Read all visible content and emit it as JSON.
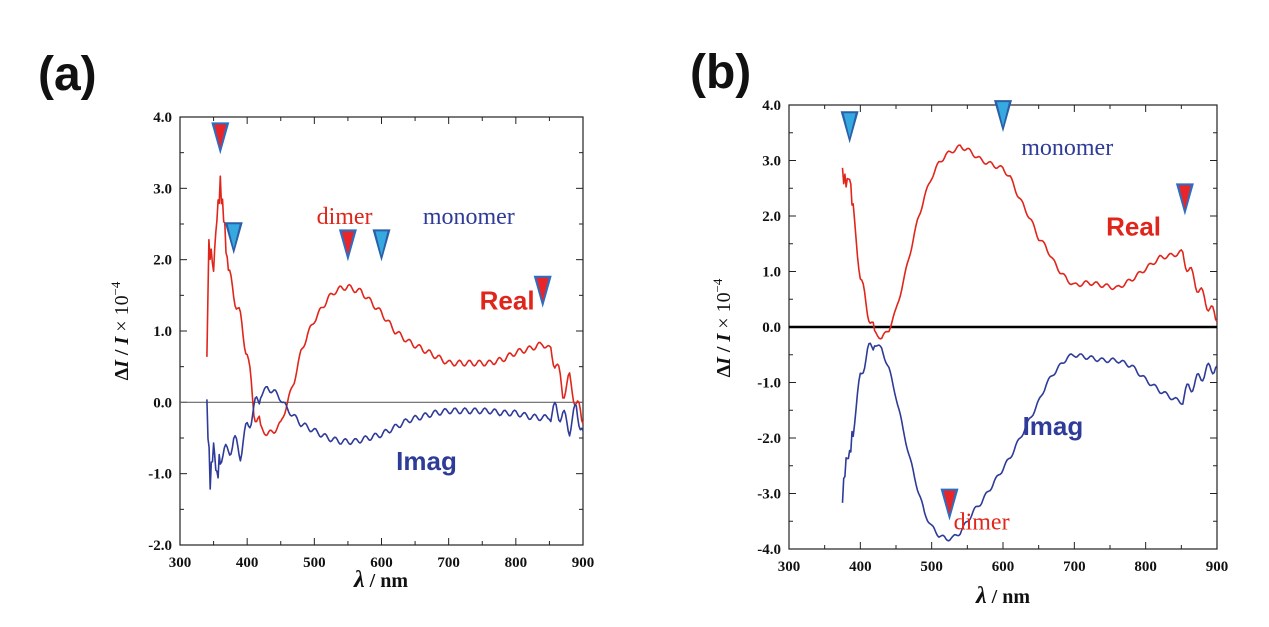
{
  "chart_data": [
    {
      "type": "line",
      "panel_label": "(a)",
      "x_range": [
        300,
        900
      ],
      "y_range": [
        -2.0,
        4.0
      ],
      "x_ticks": [
        "300",
        "400",
        "500",
        "600",
        "700",
        "800",
        "900"
      ],
      "y_ticks": [
        "4.0",
        "3.0",
        "2.0",
        "1.0",
        "0.0",
        "-1.0",
        "-2.0"
      ],
      "xlabel": {
        "symbol": "λ",
        "sep": " / ",
        "unit": "nm"
      },
      "ylabel": {
        "delta": "Δ",
        "numer": "I",
        "slash": " / ",
        "denom": "I",
        "times": " × 10",
        "exp": "−4"
      },
      "zero_line": {
        "y": 0,
        "color": "#666666"
      },
      "series": [
        {
          "name": "Real",
          "color": "#e0261b",
          "x": [
            340,
            343,
            350,
            355,
            360,
            365,
            372,
            380,
            390,
            400,
            410,
            420,
            430,
            440,
            450,
            460,
            470,
            480,
            490,
            500,
            510,
            520,
            530,
            540,
            550,
            560,
            570,
            580,
            590,
            600,
            620,
            640,
            660,
            680,
            700,
            720,
            740,
            760,
            780,
            800,
            820,
            840,
            850,
            860,
            870,
            880,
            890,
            900
          ],
          "y": [
            0.7,
            2.2,
            1.9,
            2.6,
            3.05,
            2.6,
            1.8,
            1.55,
            1.15,
            0.7,
            -0.1,
            -0.35,
            -0.45,
            -0.4,
            -0.3,
            0.0,
            0.3,
            0.7,
            0.95,
            1.15,
            1.3,
            1.45,
            1.55,
            1.6,
            1.62,
            1.58,
            1.55,
            1.45,
            1.35,
            1.25,
            1.0,
            0.85,
            0.75,
            0.65,
            0.55,
            0.55,
            0.55,
            0.55,
            0.6,
            0.7,
            0.75,
            0.82,
            0.75,
            0.55,
            0.15,
            0.3,
            0.0,
            -0.3
          ]
        },
        {
          "name": "Imag",
          "color": "#2e3b98",
          "x": [
            340,
            345,
            350,
            355,
            360,
            370,
            380,
            390,
            400,
            410,
            420,
            430,
            440,
            450,
            460,
            470,
            480,
            500,
            520,
            540,
            560,
            580,
            600,
            620,
            640,
            660,
            680,
            700,
            720,
            740,
            760,
            780,
            800,
            820,
            840,
            850,
            860,
            870,
            880,
            890,
            900
          ],
          "y": [
            -0.05,
            -1.1,
            -0.6,
            -1.05,
            -0.75,
            -0.7,
            -0.55,
            -0.7,
            -0.35,
            -0.1,
            0.1,
            0.2,
            0.15,
            0.05,
            -0.1,
            -0.2,
            -0.3,
            -0.4,
            -0.5,
            -0.55,
            -0.55,
            -0.5,
            -0.45,
            -0.35,
            -0.25,
            -0.2,
            -0.15,
            -0.12,
            -0.12,
            -0.12,
            -0.12,
            -0.15,
            -0.15,
            -0.2,
            -0.22,
            -0.2,
            -0.1,
            -0.2,
            -0.35,
            -0.1,
            -0.4
          ]
        }
      ],
      "annotations": [
        {
          "text": "dimer",
          "x": 545,
          "y": 2.5,
          "color": "#e0261b",
          "font": "serif"
        },
        {
          "text": "monomer",
          "x": 730,
          "y": 2.5,
          "color": "#2e3b98",
          "font": "serif"
        },
        {
          "text": "Real",
          "x": 787,
          "y": 1.3,
          "color": "#e0261b",
          "font": "sans"
        },
        {
          "text": "Imag",
          "x": 667,
          "y": -0.95,
          "color": "#2e3b98",
          "font": "sans"
        }
      ],
      "markers": [
        {
          "x": 360,
          "y": 3.7,
          "kind": "dimer"
        },
        {
          "x": 380,
          "y": 2.3,
          "kind": "monomer"
        },
        {
          "x": 550,
          "y": 2.2,
          "kind": "dimer"
        },
        {
          "x": 600,
          "y": 2.2,
          "kind": "monomer"
        },
        {
          "x": 840,
          "y": 1.55,
          "kind": "dimer"
        }
      ]
    },
    {
      "type": "line",
      "panel_label": "(b)",
      "x_range": [
        300,
        900
      ],
      "y_range": [
        -4.0,
        4.0
      ],
      "x_ticks": [
        "300",
        "400",
        "500",
        "600",
        "700",
        "800",
        "900"
      ],
      "y_ticks": [
        "4.0",
        "3.0",
        "2.0",
        "1.0",
        "0.0",
        "-1.0",
        "-2.0",
        "-3.0",
        "-4.0"
      ],
      "xlabel": {
        "symbol": "λ",
        "sep": " / ",
        "unit": "nm"
      },
      "ylabel": {
        "delta": "Δ",
        "numer": "I",
        "slash": " / ",
        "denom": "I",
        "times": " × 10",
        "exp": "−4"
      },
      "zero_line": {
        "y": 0,
        "color": "#000000"
      },
      "series": [
        {
          "name": "Real",
          "color": "#e0261b",
          "x": [
            375,
            380,
            385,
            390,
            400,
            410,
            420,
            430,
            440,
            450,
            460,
            470,
            480,
            490,
            500,
            510,
            520,
            530,
            540,
            550,
            560,
            570,
            580,
            590,
            600,
            610,
            620,
            630,
            640,
            650,
            660,
            670,
            680,
            690,
            700,
            720,
            740,
            760,
            780,
            800,
            820,
            840,
            850,
            860,
            870,
            880,
            890,
            900
          ],
          "y": [
            2.75,
            2.6,
            2.7,
            2.1,
            0.9,
            0.3,
            -0.1,
            -0.2,
            -0.05,
            0.3,
            0.8,
            1.35,
            1.9,
            2.35,
            2.7,
            2.95,
            3.1,
            3.18,
            3.25,
            3.2,
            3.1,
            3.0,
            2.95,
            2.9,
            2.85,
            2.7,
            2.4,
            2.15,
            1.9,
            1.6,
            1.45,
            1.2,
            1.0,
            0.85,
            0.75,
            0.8,
            0.75,
            0.7,
            0.85,
            1.05,
            1.25,
            1.3,
            1.35,
            1.05,
            0.8,
            0.55,
            0.35,
            0.1
          ]
        },
        {
          "name": "Imag",
          "color": "#2e3b98",
          "x": [
            375,
            380,
            385,
            390,
            400,
            410,
            420,
            430,
            440,
            450,
            460,
            470,
            480,
            490,
            500,
            510,
            520,
            530,
            540,
            550,
            560,
            570,
            580,
            590,
            600,
            610,
            620,
            630,
            640,
            650,
            660,
            670,
            680,
            690,
            700,
            720,
            740,
            760,
            780,
            800,
            820,
            840,
            850,
            860,
            870,
            880,
            890,
            900
          ],
          "y": [
            -3.05,
            -2.4,
            -2.3,
            -1.85,
            -0.9,
            -0.45,
            -0.3,
            -0.4,
            -0.75,
            -1.25,
            -1.85,
            -2.4,
            -2.9,
            -3.35,
            -3.6,
            -3.75,
            -3.82,
            -3.8,
            -3.7,
            -3.5,
            -3.3,
            -3.15,
            -2.95,
            -2.75,
            -2.55,
            -2.35,
            -2.1,
            -1.85,
            -1.6,
            -1.35,
            -1.05,
            -0.85,
            -0.7,
            -0.55,
            -0.5,
            -0.55,
            -0.6,
            -0.6,
            -0.7,
            -0.95,
            -1.15,
            -1.3,
            -1.35,
            -1.1,
            -1.0,
            -0.85,
            -0.75,
            -0.7
          ]
        }
      ],
      "annotations": [
        {
          "text": "monomer",
          "x": 690,
          "y": 3.1,
          "color": "#2e3b98",
          "font": "serif"
        },
        {
          "text": "Real",
          "x": 783,
          "y": 1.65,
          "color": "#e0261b",
          "font": "sans"
        },
        {
          "text": "Imag",
          "x": 670,
          "y": -1.95,
          "color": "#2e3b98",
          "font": "sans"
        },
        {
          "text": "dimer",
          "x": 570,
          "y": -3.65,
          "color": "#e0261b",
          "font": "serif"
        }
      ],
      "markers": [
        {
          "x": 385,
          "y": 3.6,
          "kind": "monomer"
        },
        {
          "x": 600,
          "y": 3.8,
          "kind": "monomer"
        },
        {
          "x": 855,
          "y": 2.3,
          "kind": "dimer"
        },
        {
          "x": 525,
          "y": -3.2,
          "kind": "dimer"
        }
      ]
    }
  ]
}
